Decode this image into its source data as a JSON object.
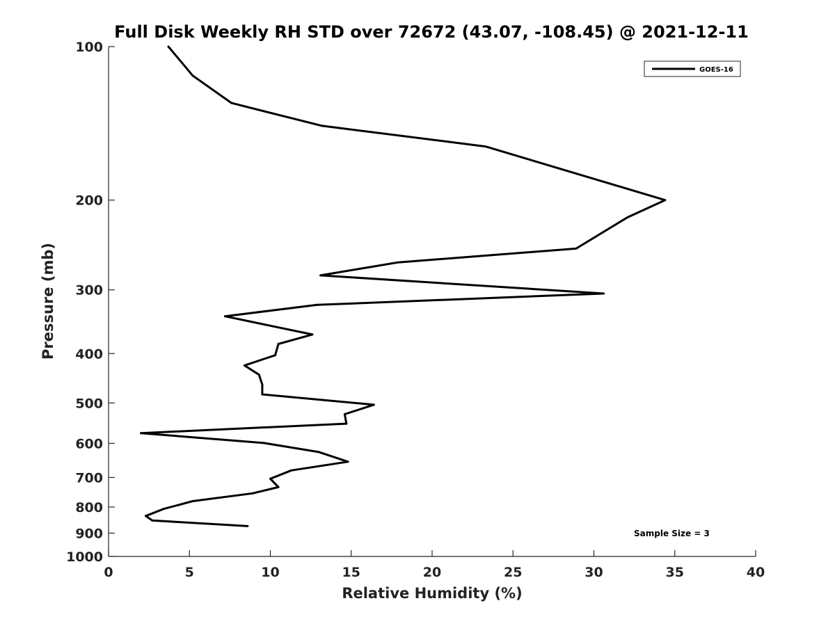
{
  "chart_data": {
    "type": "line",
    "title": "Full Disk Weekly RH STD over 72672 (43.07, -108.45) @ 2021-12-11",
    "xlabel": "Relative Humidity (%)",
    "ylabel": "Pressure (mb)",
    "xlim": [
      0,
      40
    ],
    "ylim": [
      100,
      1000
    ],
    "yscale": "log",
    "y_reversed": true,
    "xticks": [
      0,
      5,
      10,
      15,
      20,
      25,
      30,
      35,
      40
    ],
    "yticks": [
      100,
      200,
      300,
      400,
      500,
      600,
      700,
      800,
      900,
      1000
    ],
    "grid": false,
    "legend_position": "top-right",
    "annotation": "Sample Size = 3",
    "series": [
      {
        "name": "GOES-16",
        "color": "#000000",
        "x": [
          3.7,
          5.2,
          7.6,
          13.2,
          23.3,
          34.4,
          32.1,
          28.9,
          17.9,
          13.1,
          30.6,
          12.9,
          7.2,
          12.6,
          10.5,
          10.3,
          8.4,
          9.3,
          9.5,
          9.5,
          16.4,
          14.6,
          14.7,
          2.0,
          9.6,
          13.0,
          14.8,
          11.3,
          10.0,
          10.5,
          8.9,
          5.2,
          3.4,
          2.3,
          2.7,
          8.6
        ],
        "y": [
          100,
          114,
          129,
          143,
          157,
          200,
          216,
          249,
          265,
          281,
          305,
          321,
          338,
          367,
          383,
          403,
          422,
          440,
          460,
          481,
          504,
          526,
          549,
          573,
          599,
          624,
          652,
          678,
          704,
          731,
          752,
          779,
          807,
          833,
          850,
          872
        ]
      }
    ]
  }
}
